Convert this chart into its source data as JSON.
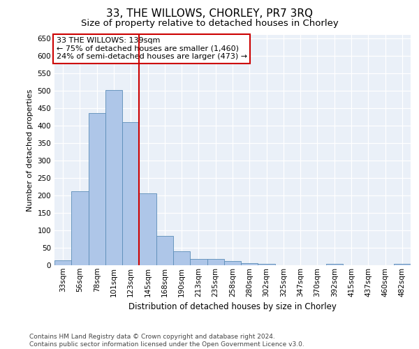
{
  "title": "33, THE WILLOWS, CHORLEY, PR7 3RQ",
  "subtitle": "Size of property relative to detached houses in Chorley",
  "xlabel": "Distribution of detached houses by size in Chorley",
  "ylabel": "Number of detached properties",
  "categories": [
    "33sqm",
    "56sqm",
    "78sqm",
    "101sqm",
    "123sqm",
    "145sqm",
    "168sqm",
    "190sqm",
    "213sqm",
    "235sqm",
    "258sqm",
    "280sqm",
    "302sqm",
    "325sqm",
    "347sqm",
    "370sqm",
    "392sqm",
    "415sqm",
    "437sqm",
    "460sqm",
    "482sqm"
  ],
  "values": [
    15,
    212,
    437,
    503,
    410,
    207,
    85,
    40,
    18,
    18,
    12,
    6,
    5,
    0,
    0,
    0,
    5,
    0,
    0,
    0,
    5
  ],
  "bar_color": "#aec6e8",
  "bar_edge_color": "#5b8db8",
  "vline_color": "#cc0000",
  "annotation_text": "33 THE WILLOWS: 139sqm\n← 75% of detached houses are smaller (1,460)\n24% of semi-detached houses are larger (473) →",
  "annotation_box_color": "#ffffff",
  "annotation_box_edgecolor": "#cc0000",
  "ylim": [
    0,
    660
  ],
  "yticks": [
    0,
    50,
    100,
    150,
    200,
    250,
    300,
    350,
    400,
    450,
    500,
    550,
    600,
    650
  ],
  "footer": "Contains HM Land Registry data © Crown copyright and database right 2024.\nContains public sector information licensed under the Open Government Licence v3.0.",
  "plot_bg_color": "#eaf0f8",
  "fig_bg_color": "#ffffff",
  "title_fontsize": 11,
  "subtitle_fontsize": 9.5,
  "xlabel_fontsize": 8.5,
  "ylabel_fontsize": 8,
  "tick_fontsize": 7.5,
  "footer_fontsize": 6.5,
  "annotation_fontsize": 8
}
